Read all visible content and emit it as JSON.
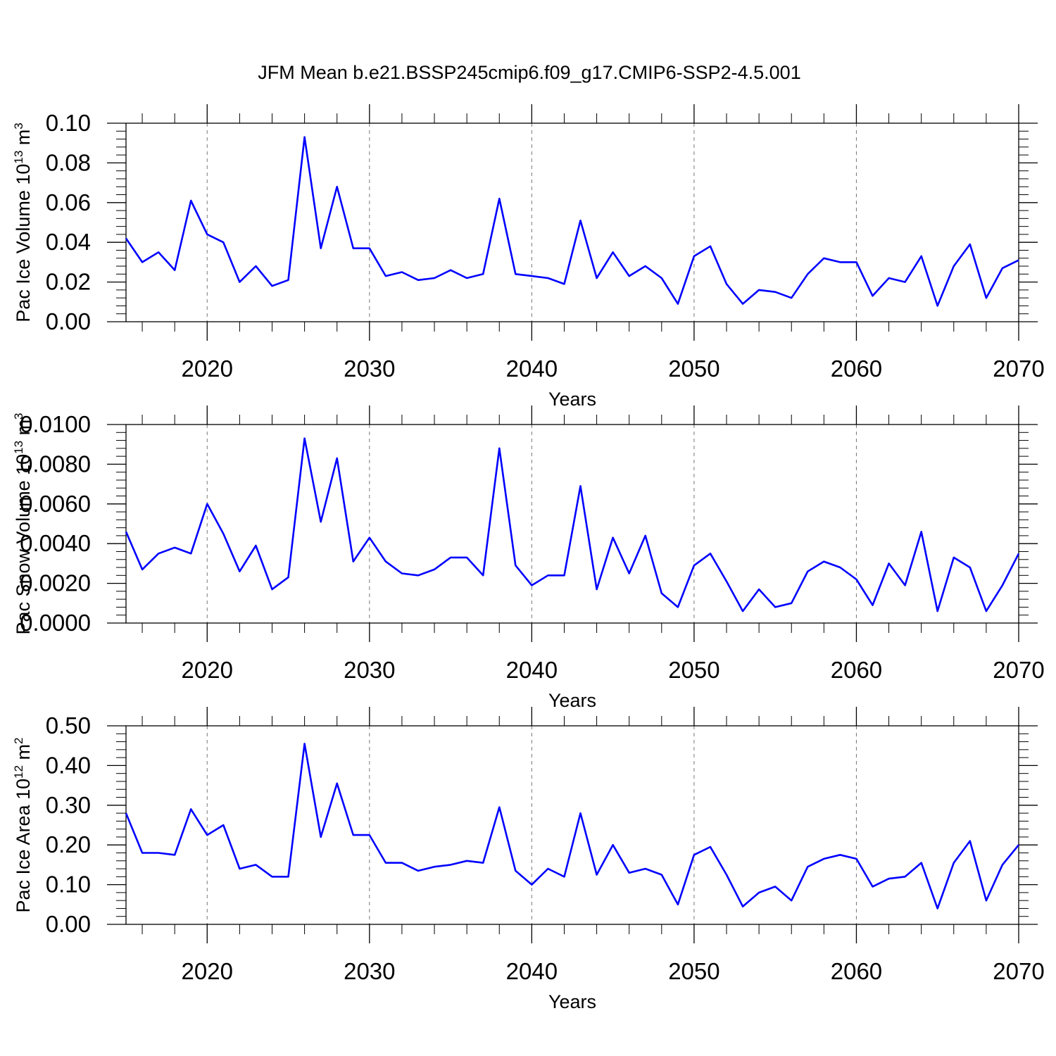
{
  "title": "JFM Mean b.e21.BSSP245cmip6.f09_g17.CMIP6-SSP2-4.5.001",
  "line_color": "#0000ff",
  "chart_data": [
    {
      "type": "line",
      "ylabel": "Pac Ice Volume 10",
      "ylabel_sup": "13",
      "ylabel_unit": "m",
      "ylabel_unit_sup": "3",
      "xlabel": "Years",
      "xlim": [
        2015,
        2070
      ],
      "ylim": [
        0,
        0.1
      ],
      "yticks": [
        "0.00",
        "0.02",
        "0.04",
        "0.06",
        "0.08",
        "0.10"
      ],
      "xticks": [
        "2020",
        "2030",
        "2040",
        "2050",
        "2060",
        "2070"
      ],
      "x": [
        2015,
        2016,
        2017,
        2018,
        2019,
        2020,
        2021,
        2022,
        2023,
        2024,
        2025,
        2026,
        2027,
        2028,
        2029,
        2030,
        2031,
        2032,
        2033,
        2034,
        2035,
        2036,
        2037,
        2038,
        2039,
        2040,
        2041,
        2042,
        2043,
        2044,
        2045,
        2046,
        2047,
        2048,
        2049,
        2050,
        2051,
        2052,
        2053,
        2054,
        2055,
        2056,
        2057,
        2058,
        2059,
        2060,
        2061,
        2062,
        2063,
        2064,
        2065,
        2066,
        2067,
        2068,
        2069,
        2070
      ],
      "y": [
        0.042,
        0.03,
        0.035,
        0.026,
        0.061,
        0.044,
        0.04,
        0.02,
        0.028,
        0.018,
        0.021,
        0.093,
        0.037,
        0.068,
        0.037,
        0.037,
        0.023,
        0.025,
        0.021,
        0.022,
        0.026,
        0.022,
        0.024,
        0.062,
        0.024,
        0.023,
        0.022,
        0.019,
        0.051,
        0.022,
        0.035,
        0.023,
        0.028,
        0.022,
        0.009,
        0.033,
        0.038,
        0.019,
        0.009,
        0.016,
        0.015,
        0.012,
        0.024,
        0.032,
        0.03,
        0.03,
        0.013,
        0.022,
        0.02,
        0.033,
        0.008,
        0.028,
        0.039,
        0.012,
        0.027,
        0.031
      ]
    },
    {
      "type": "line",
      "ylabel": "Pac Snow Volume 10",
      "ylabel_sup": "13",
      "ylabel_unit": "m",
      "ylabel_unit_sup": "3",
      "xlabel": "Years",
      "xlim": [
        2015,
        2070
      ],
      "ylim": [
        0,
        0.01
      ],
      "yticks": [
        "0.0000",
        "0.0020",
        "0.0040",
        "0.0060",
        "0.0080",
        "0.0100"
      ],
      "xticks": [
        "2020",
        "2030",
        "2040",
        "2050",
        "2060",
        "2070"
      ],
      "x": [
        2015,
        2016,
        2017,
        2018,
        2019,
        2020,
        2021,
        2022,
        2023,
        2024,
        2025,
        2026,
        2027,
        2028,
        2029,
        2030,
        2031,
        2032,
        2033,
        2034,
        2035,
        2036,
        2037,
        2038,
        2039,
        2040,
        2041,
        2042,
        2043,
        2044,
        2045,
        2046,
        2047,
        2048,
        2049,
        2050,
        2051,
        2052,
        2053,
        2054,
        2055,
        2056,
        2057,
        2058,
        2059,
        2060,
        2061,
        2062,
        2063,
        2064,
        2065,
        2066,
        2067,
        2068,
        2069,
        2070
      ],
      "y": [
        0.0046,
        0.0027,
        0.0035,
        0.0038,
        0.0035,
        0.006,
        0.0045,
        0.0026,
        0.0039,
        0.0017,
        0.0023,
        0.0093,
        0.0051,
        0.0083,
        0.0031,
        0.0043,
        0.0031,
        0.0025,
        0.0024,
        0.0027,
        0.0033,
        0.0033,
        0.0024,
        0.0088,
        0.0029,
        0.0019,
        0.0024,
        0.0024,
        0.0069,
        0.0017,
        0.0043,
        0.0025,
        0.0044,
        0.0015,
        0.0008,
        0.0029,
        0.0035,
        0.0021,
        0.0006,
        0.0017,
        0.0008,
        0.001,
        0.0026,
        0.0031,
        0.0028,
        0.0022,
        0.0009,
        0.003,
        0.0019,
        0.0046,
        0.0006,
        0.0033,
        0.0028,
        0.0006,
        0.0019,
        0.0035
      ]
    },
    {
      "type": "line",
      "ylabel": "Pac Ice Area 10",
      "ylabel_sup": "12",
      "ylabel_unit": "m",
      "ylabel_unit_sup": "2",
      "xlabel": "Years",
      "xlim": [
        2015,
        2070
      ],
      "ylim": [
        0,
        0.5
      ],
      "yticks": [
        "0.00",
        "0.10",
        "0.20",
        "0.30",
        "0.40",
        "0.50"
      ],
      "xticks": [
        "2020",
        "2030",
        "2040",
        "2050",
        "2060",
        "2070"
      ],
      "x": [
        2015,
        2016,
        2017,
        2018,
        2019,
        2020,
        2021,
        2022,
        2023,
        2024,
        2025,
        2026,
        2027,
        2028,
        2029,
        2030,
        2031,
        2032,
        2033,
        2034,
        2035,
        2036,
        2037,
        2038,
        2039,
        2040,
        2041,
        2042,
        2043,
        2044,
        2045,
        2046,
        2047,
        2048,
        2049,
        2050,
        2051,
        2052,
        2053,
        2054,
        2055,
        2056,
        2057,
        2058,
        2059,
        2060,
        2061,
        2062,
        2063,
        2064,
        2065,
        2066,
        2067,
        2068,
        2069,
        2070
      ],
      "y": [
        0.28,
        0.18,
        0.18,
        0.175,
        0.29,
        0.225,
        0.25,
        0.14,
        0.15,
        0.12,
        0.12,
        0.455,
        0.22,
        0.355,
        0.225,
        0.225,
        0.155,
        0.155,
        0.135,
        0.145,
        0.15,
        0.16,
        0.155,
        0.295,
        0.135,
        0.1,
        0.14,
        0.12,
        0.28,
        0.125,
        0.2,
        0.13,
        0.14,
        0.125,
        0.05,
        0.175,
        0.195,
        0.125,
        0.045,
        0.08,
        0.095,
        0.06,
        0.145,
        0.165,
        0.175,
        0.165,
        0.095,
        0.115,
        0.12,
        0.155,
        0.04,
        0.155,
        0.21,
        0.06,
        0.15,
        0.2
      ]
    }
  ]
}
